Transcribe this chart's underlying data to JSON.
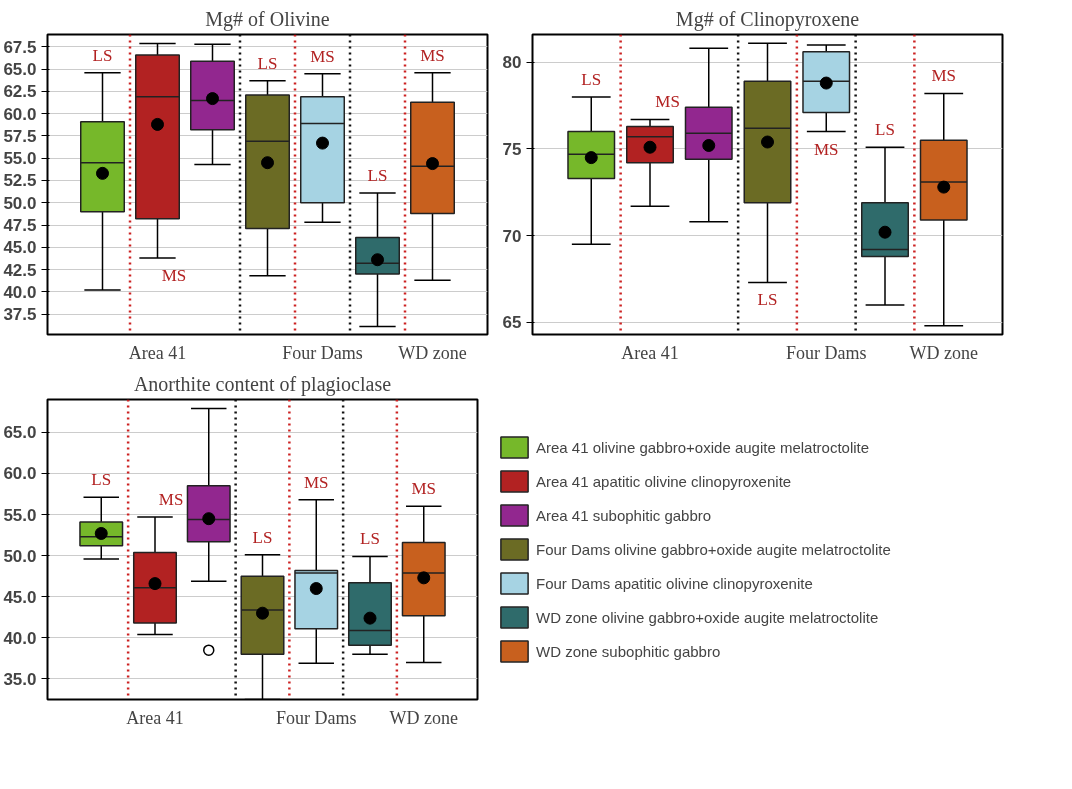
{
  "chart_data": [
    {
      "type": "box",
      "title": "Mg# of Olivine",
      "categories": [
        null,
        "Area 41",
        null,
        null,
        "Four Dams",
        null,
        "WD zone"
      ],
      "ylim": [
        35.2,
        68.9
      ],
      "yticks": [
        {
          "value": 37.5,
          "label": "37.5"
        },
        {
          "value": 40,
          "label": "40.0"
        },
        {
          "value": 42.5,
          "label": "42.5"
        },
        {
          "value": 45,
          "label": "45.0"
        },
        {
          "value": 47.5,
          "label": "47.5"
        },
        {
          "value": 50,
          "label": "50.0"
        },
        {
          "value": 52.5,
          "label": "52.5"
        },
        {
          "value": 55,
          "label": "55.0"
        },
        {
          "value": 57.5,
          "label": "57.5"
        },
        {
          "value": 60,
          "label": "60.0"
        },
        {
          "value": 62.5,
          "label": "62.5"
        },
        {
          "value": 65,
          "label": "65.0"
        },
        {
          "value": 67.5,
          "label": "67.5"
        }
      ],
      "grid": "y",
      "series": [
        {
          "color": "#76b82a",
          "boxes": [
            {
              "low": 40.2,
              "q1": 49.0,
              "median": 54.5,
              "q3": 59.1,
              "high": 64.6,
              "mean": 53.3
            },
            null,
            null,
            null,
            null,
            null,
            null
          ]
        },
        {
          "color": "#b22222",
          "boxes": [
            null,
            {
              "low": 43.8,
              "q1": 48.2,
              "median": 61.9,
              "q3": 66.6,
              "high": 67.9,
              "mean": 58.8
            },
            null,
            null,
            null,
            null,
            null
          ]
        },
        {
          "color": "#92278f",
          "boxes": [
            null,
            null,
            {
              "low": 54.3,
              "q1": 58.2,
              "median": 61.5,
              "q3": 65.9,
              "high": 67.8,
              "mean": 61.7
            },
            null,
            null,
            null,
            null
          ]
        },
        {
          "color": "#6b6b24",
          "boxes": [
            null,
            null,
            null,
            {
              "low": 41.8,
              "q1": 47.1,
              "median": 56.9,
              "q3": 62.1,
              "high": 63.7,
              "mean": 54.5
            },
            null,
            null,
            null
          ]
        },
        {
          "color": "#a6d3e3",
          "boxes": [
            null,
            null,
            null,
            null,
            {
              "low": 47.8,
              "q1": 50.0,
              "median": 58.9,
              "q3": 61.9,
              "high": 64.5,
              "mean": 56.7
            },
            null,
            null
          ]
        },
        {
          "color": "#2f6b6b",
          "boxes": [
            null,
            null,
            null,
            null,
            null,
            {
              "low": 36.1,
              "q1": 42.0,
              "median": 43.2,
              "q3": 46.1,
              "high": 51.1,
              "mean": 43.6
            },
            null
          ]
        },
        {
          "color": "#c8601e",
          "boxes": [
            null,
            null,
            null,
            null,
            null,
            null,
            {
              "low": 41.3,
              "q1": 48.8,
              "median": 54.1,
              "q3": 61.3,
              "high": 64.6,
              "mean": 54.4
            }
          ]
        }
      ],
      "annotations": [
        "LS",
        "MS",
        "LS",
        "MS",
        "LS",
        "MS"
      ]
    },
    {
      "type": "box",
      "title": "Mg# of Clinopyroxene",
      "categories": [
        null,
        "Area 41",
        null,
        null,
        "Four Dams",
        null,
        "WD zone"
      ],
      "ylim": [
        64.3,
        81.6
      ],
      "yticks": [
        65,
        70,
        75,
        80
      ],
      "grid": "y",
      "series": [
        {
          "color": "#76b82a",
          "boxes": [
            {
              "low": 69.5,
              "q1": 73.3,
              "median": 74.7,
              "q3": 76.0,
              "high": 78.0,
              "mean": 74.5
            },
            null,
            null,
            null,
            null,
            null,
            null
          ]
        },
        {
          "color": "#b22222",
          "boxes": [
            null,
            {
              "low": 71.7,
              "q1": 74.2,
              "median": 75.7,
              "q3": 76.3,
              "high": 76.7,
              "mean": 75.1
            },
            null,
            null,
            null,
            null,
            null
          ]
        },
        {
          "color": "#92278f",
          "boxes": [
            null,
            null,
            {
              "low": 70.8,
              "q1": 74.4,
              "median": 75.9,
              "q3": 77.4,
              "high": 80.8,
              "mean": 75.2
            },
            null,
            null,
            null,
            null
          ]
        },
        {
          "color": "#6b6b24",
          "boxes": [
            null,
            null,
            null,
            {
              "low": 67.3,
              "q1": 71.9,
              "median": 76.2,
              "q3": 78.9,
              "high": 81.1,
              "mean": 75.4
            },
            null,
            null,
            null
          ]
        },
        {
          "color": "#a6d3e3",
          "boxes": [
            null,
            null,
            null,
            null,
            {
              "low": 76.0,
              "q1": 77.1,
              "median": 78.9,
              "q3": 80.6,
              "high": 81.0,
              "mean": 78.8
            },
            null,
            null
          ]
        },
        {
          "color": "#2f6b6b",
          "boxes": [
            null,
            null,
            null,
            null,
            null,
            {
              "low": 66.0,
              "q1": 68.8,
              "median": 69.2,
              "q3": 71.9,
              "high": 75.1,
              "mean": 70.2
            },
            null
          ]
        },
        {
          "color": "#c8601e",
          "boxes": [
            null,
            null,
            null,
            null,
            null,
            null,
            {
              "low": 64.8,
              "q1": 70.9,
              "median": 73.1,
              "q3": 75.5,
              "high": 78.2,
              "mean": 72.8
            }
          ]
        }
      ],
      "annotations": [
        "LS",
        "MS",
        "LS",
        "MS",
        "LS",
        "MS"
      ]
    },
    {
      "type": "box",
      "title": "Anorthite content of plagioclase",
      "categories": [
        null,
        "Area 41",
        null,
        null,
        "Four Dams",
        null,
        "WD zone"
      ],
      "ylim": [
        32.5,
        69.0
      ],
      "yticks": [
        {
          "value": 35,
          "label": "35.0"
        },
        {
          "value": 40,
          "label": "40.0"
        },
        {
          "value": 45,
          "label": "45.0"
        },
        {
          "value": 50,
          "label": "50.0"
        },
        {
          "value": 55,
          "label": "55.0"
        },
        {
          "value": 60,
          "label": "60.0"
        },
        {
          "value": 65,
          "label": "65.0"
        }
      ],
      "grid": "y",
      "legend": "right",
      "series": [
        {
          "name": "Area 41 olivine gabbro+oxide augite melatroctolite",
          "color": "#76b82a",
          "boxes": [
            {
              "low": 49.6,
              "q1": 51.2,
              "median": 52.3,
              "q3": 54.1,
              "high": 57.1,
              "mean": 52.7
            },
            null,
            null,
            null,
            null,
            null,
            null
          ]
        },
        {
          "name": "Area 41 apatitic olivine clinopyroxenite",
          "color": "#b22222",
          "boxes": [
            null,
            {
              "low": 40.4,
              "q1": 41.8,
              "median": 46.1,
              "q3": 50.4,
              "high": 54.7,
              "mean": 46.6
            },
            null,
            null,
            null,
            null,
            null
          ]
        },
        {
          "name": "Area 41 subophitic gabbro",
          "color": "#92278f",
          "boxes": [
            null,
            null,
            {
              "low": 46.9,
              "q1": 51.7,
              "median": 54.4,
              "q3": 58.5,
              "high": 67.9,
              "mean": 54.5,
              "outliers": [
                38.5
              ]
            },
            null,
            null,
            null,
            null
          ]
        },
        {
          "name": "Four Dams olivine gabbro+oxide augite melatroctolite",
          "color": "#6b6b24",
          "boxes": [
            null,
            null,
            null,
            {
              "low": 32.5,
              "q1": 38.0,
              "median": 43.4,
              "q3": 47.5,
              "high": 50.1,
              "mean": 43.0
            },
            null,
            null,
            null
          ]
        },
        {
          "name": "Four Dams apatitic olivine clinopyroxenite",
          "color": "#a6d3e3",
          "boxes": [
            null,
            null,
            null,
            null,
            {
              "low": 36.9,
              "q1": 41.1,
              "median": 47.9,
              "q3": 48.2,
              "high": 56.8,
              "mean": 46.0
            },
            null,
            null
          ]
        },
        {
          "name": "WD zone olivine gabbro+oxide augite melatroctolite",
          "color": "#2f6b6b",
          "boxes": [
            null,
            null,
            null,
            null,
            null,
            {
              "low": 38.0,
              "q1": 39.1,
              "median": 40.9,
              "q3": 46.7,
              "high": 49.9,
              "mean": 42.4
            },
            null
          ]
        },
        {
          "name": "WD zone subophitic gabbro",
          "color": "#c8601e",
          "boxes": [
            null,
            null,
            null,
            null,
            null,
            null,
            {
              "low": 37.0,
              "q1": 42.7,
              "median": 47.9,
              "q3": 51.6,
              "high": 56.0,
              "mean": 47.3
            }
          ]
        }
      ],
      "annotations": [
        "LS",
        "MS",
        "LS",
        "MS",
        "LS",
        "MS"
      ]
    }
  ]
}
